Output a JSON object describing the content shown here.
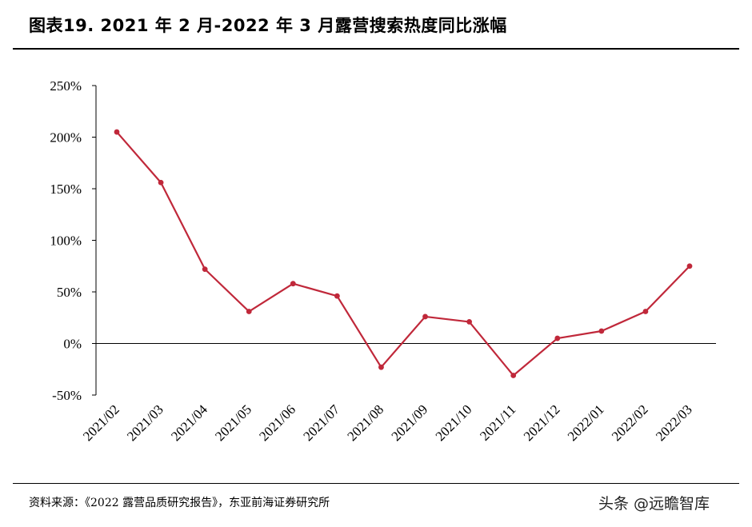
{
  "header": {
    "title": "图表19.  2021 年 2 月-2022 年 3 月露营搜索热度同比涨幅"
  },
  "footer": {
    "source": "资料来源：《2022 露营品质研究报告》，东亚前海证券研究所",
    "watermark": "头条 @远瞻智库"
  },
  "chart_data": {
    "type": "line",
    "title": "",
    "xlabel": "",
    "ylabel": "",
    "categories": [
      "2021/02",
      "2021/03",
      "2021/04",
      "2021/05",
      "2021/06",
      "2021/07",
      "2021/08",
      "2021/09",
      "2021/10",
      "2021/11",
      "2021/12",
      "2022/01",
      "2022/02",
      "2022/03"
    ],
    "series": [
      {
        "values": [
          205,
          156,
          72,
          31,
          58,
          46,
          -23,
          26,
          21,
          -31,
          5,
          12,
          31,
          75
        ]
      }
    ],
    "ylim": [
      -50,
      250
    ],
    "yticks": [
      -50,
      0,
      50,
      100,
      150,
      200,
      250
    ],
    "ytick_labels": [
      "-50%",
      "0%",
      "50%",
      "100%",
      "150%",
      "200%",
      "250%"
    ],
    "grid": false,
    "legend": "none",
    "line_color": "#c0283a"
  }
}
